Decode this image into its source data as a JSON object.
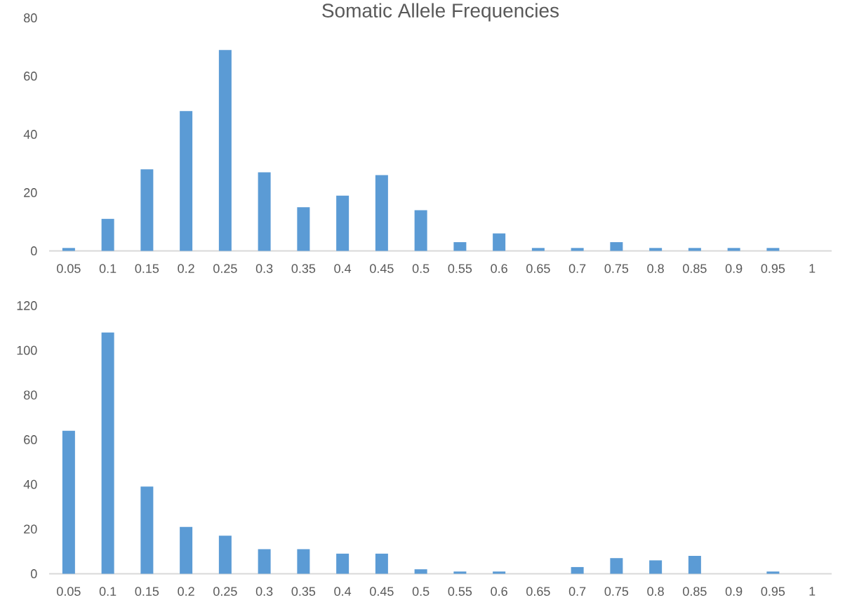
{
  "chart_data": [
    {
      "type": "bar",
      "title": "Somatic Allele Frequencies",
      "categories": [
        "0.05",
        "0.1",
        "0.15",
        "0.2",
        "0.25",
        "0.3",
        "0.35",
        "0.4",
        "0.45",
        "0.5",
        "0.55",
        "0.6",
        "0.65",
        "0.7",
        "0.75",
        "0.8",
        "0.85",
        "0.9",
        "0.95",
        "1"
      ],
      "values": [
        1,
        11,
        28,
        48,
        69,
        27,
        15,
        19,
        26,
        14,
        3,
        6,
        1,
        1,
        3,
        1,
        1,
        1,
        1,
        0
      ],
      "color": "#5b9bd5",
      "ylim": [
        0,
        80
      ],
      "yticks": [
        0,
        20,
        40,
        60,
        80
      ]
    },
    {
      "type": "bar",
      "categories": [
        "0.05",
        "0.1",
        "0.15",
        "0.2",
        "0.25",
        "0.3",
        "0.35",
        "0.4",
        "0.45",
        "0.5",
        "0.55",
        "0.6",
        "0.65",
        "0.7",
        "0.75",
        "0.8",
        "0.85",
        "0.9",
        "0.95",
        "1"
      ],
      "values": [
        64,
        108,
        39,
        21,
        17,
        11,
        11,
        9,
        9,
        2,
        1,
        1,
        0,
        3,
        7,
        6,
        8,
        0,
        1,
        0
      ],
      "color": "#5b9bd5",
      "ylim": [
        0,
        120
      ],
      "yticks": [
        0,
        20,
        40,
        60,
        80,
        100,
        120
      ]
    }
  ]
}
